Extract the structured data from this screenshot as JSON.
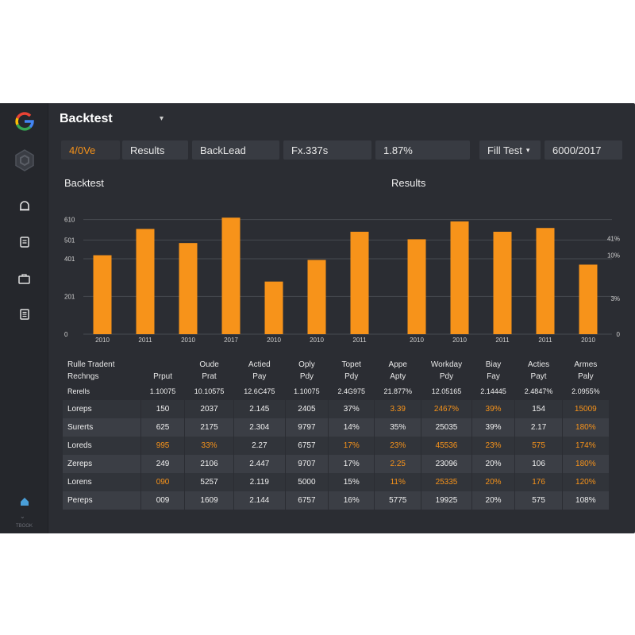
{
  "app": {
    "title": "Backtest"
  },
  "sidebar": {
    "items": [
      {
        "name": "google-logo-icon"
      },
      {
        "name": "hexagon-icon"
      },
      {
        "name": "bell-icon"
      },
      {
        "name": "document-icon"
      },
      {
        "name": "briefcase-icon"
      },
      {
        "name": "list-icon"
      },
      {
        "name": "home-icon"
      }
    ],
    "footer_label": "TBOOK"
  },
  "toolbar": {
    "chips": [
      {
        "label": "4/0Ve"
      },
      {
        "label": "Results"
      },
      {
        "label": "BackLead"
      },
      {
        "label": "Fx.337s"
      },
      {
        "label": "1.87%"
      },
      {
        "label": "Fill Test"
      },
      {
        "label": "6000/2017"
      }
    ]
  },
  "sections": {
    "left_title": "Backtest",
    "right_title": "Results"
  },
  "chart_data": {
    "type": "bar",
    "categories": [
      "2010",
      "2011",
      "2010",
      "2017",
      "2010",
      "2010",
      "2011",
      "2010",
      "2010",
      "2011",
      "2011",
      "2010"
    ],
    "values": [
      420,
      560,
      485,
      620,
      280,
      395,
      545,
      505,
      600,
      545,
      565,
      370
    ],
    "left_ticks": [
      "610",
      "501",
      "401",
      "201",
      "0"
    ],
    "right_ticks": [
      "41%",
      "10%",
      "3%",
      "0"
    ],
    "ylim": [
      0,
      680
    ],
    "grid": true,
    "colors": {
      "bar": "#f7931a",
      "grid": "#474a51"
    }
  },
  "table": {
    "columns": [
      {
        "line1": "Rulle Tradent",
        "line2": "Rechngs"
      },
      {
        "line1": "",
        "line2": "Prput"
      },
      {
        "line1": "Oude",
        "line2": "Prat"
      },
      {
        "line1": "Actied",
        "line2": "Pay"
      },
      {
        "line1": "Oply",
        "line2": "Pdy"
      },
      {
        "line1": "Topet",
        "line2": "Pdy"
      },
      {
        "line1": "Appe",
        "line2": "Apty"
      },
      {
        "line1": "Workday",
        "line2": "Pdy"
      },
      {
        "line1": "Biay",
        "line2": "Fay"
      },
      {
        "line1": "Acties",
        "line2": "Payt"
      },
      {
        "line1": "Armes",
        "line2": "Paly"
      }
    ],
    "summary": [
      "Rerells",
      "1.10075",
      "10.10575",
      "12.6C475",
      "1.10075",
      "2.4G975",
      "21.877%",
      "12.05165",
      "2.14445",
      "2.4847%",
      "2.0955%"
    ],
    "rows": [
      {
        "cells": [
          "Loreps",
          "150",
          "2037",
          "2.145",
          "2405",
          "37%",
          "3.39",
          "2467%",
          "39%",
          "154",
          "15009"
        ],
        "orange": [
          6,
          7,
          8,
          10
        ]
      },
      {
        "cells": [
          "Surerts",
          "625",
          "2175",
          "2.304",
          "9797",
          "14%",
          "35%",
          "25035",
          "39%",
          "2.17",
          "180%"
        ],
        "orange": [
          10
        ]
      },
      {
        "cells": [
          "Loreds",
          "995",
          "33%",
          "2.27",
          "6757",
          "17%",
          "23%",
          "45536",
          "23%",
          "575",
          "174%"
        ],
        "orange": [
          1,
          2,
          5,
          6,
          7,
          8,
          9,
          10
        ]
      },
      {
        "cells": [
          "Zereps",
          "249",
          "2106",
          "2.447",
          "9707",
          "17%",
          "2.25",
          "23096",
          "20%",
          "106",
          "180%"
        ],
        "orange": [
          6,
          10
        ]
      },
      {
        "cells": [
          "Lorens",
          "090",
          "5257",
          "2.119",
          "5000",
          "15%",
          "11%",
          "25335",
          "20%",
          "176",
          "120%"
        ],
        "orange": [
          1,
          6,
          7,
          8,
          9,
          10
        ]
      },
      {
        "cells": [
          "Pereps",
          "009",
          "1609",
          "2.144",
          "6757",
          "16%",
          "5775",
          "19925",
          "20%",
          "575",
          "108%"
        ],
        "orange": []
      }
    ]
  }
}
